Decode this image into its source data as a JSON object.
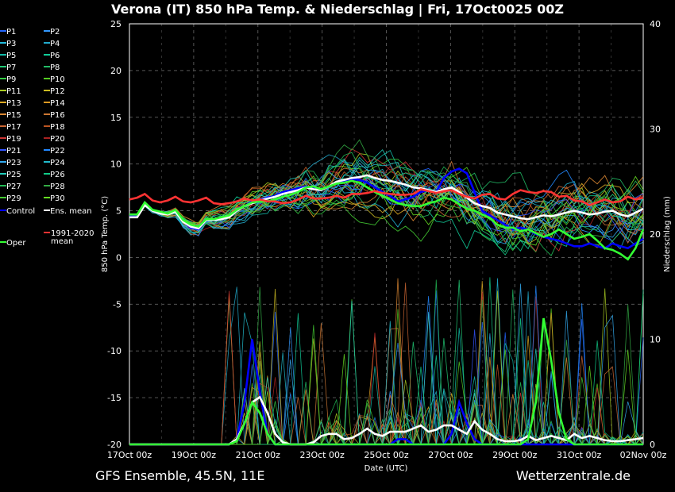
{
  "chart_data": {
    "type": "line",
    "title": "Verona  (IT)  850 hPa Temp. & Niederschlag | Fri, 17Oct0025 00Z",
    "xlabel": "Date (UTC)",
    "ylabel_left": "850 hPa Temp. (°C)",
    "ylabel_right": "Niederschlag (mm)",
    "ylim_left": [
      -20,
      25
    ],
    "ylim_right": [
      0,
      40
    ],
    "yticks_left": [
      "25",
      "20",
      "15",
      "10",
      "5",
      "0",
      "-5",
      "-10",
      "-15",
      "-20"
    ],
    "yticks_right": [
      "40",
      "30",
      "20",
      "10",
      "0"
    ],
    "xticks": [
      "17Oct 00z",
      "19Oct 00z",
      "21Oct 00z",
      "23Oct 00z",
      "25Oct 00z",
      "27Oct 00z",
      "29Oct 00z",
      "31Oct 00z",
      "02Nov 00z"
    ],
    "x_start": "2025-10-17T00:00Z",
    "x_end": "2025-11-02T00:00Z",
    "grid": true,
    "legend_position": "left",
    "footer_left": "GFS Ensemble, 45.5N, 11E",
    "footer_right": "Wetterzentrale.de",
    "perturbation_count": 30,
    "perturbation_colors": [
      "#2266ff",
      "#3399ff",
      "#22bbdd",
      "#22aacc",
      "#11bbaa",
      "#11cc99",
      "#22cc77",
      "#22bb66",
      "#33cc44",
      "#55cc22",
      "#aacc22",
      "#ccbb22",
      "#ddaa22",
      "#dd9922",
      "#dd8833",
      "#cc7733",
      "#cc6633",
      "#bb5522",
      "#cc3333",
      "#aa2222",
      "#3355ff",
      "#2288ff",
      "#33aaee",
      "#22bbcc",
      "#22ccbb",
      "#11cc88",
      "#22bb55",
      "#33aa44",
      "#44cc33",
      "#66dd22"
    ],
    "legend": [
      {
        "label": "P1",
        "color": "#2266ff"
      },
      {
        "label": "P2",
        "color": "#3399ff"
      },
      {
        "label": "P3",
        "color": "#22bbdd"
      },
      {
        "label": "P4",
        "color": "#22aacc"
      },
      {
        "label": "P5",
        "color": "#11bbaa"
      },
      {
        "label": "P6",
        "color": "#11cc99"
      },
      {
        "label": "P7",
        "color": "#22cc77"
      },
      {
        "label": "P8",
        "color": "#22bb66"
      },
      {
        "label": "P9",
        "color": "#33cc44"
      },
      {
        "label": "P10",
        "color": "#55cc22"
      },
      {
        "label": "P11",
        "color": "#aacc22"
      },
      {
        "label": "P12",
        "color": "#ccbb22"
      },
      {
        "label": "P13",
        "color": "#ddaa22"
      },
      {
        "label": "P14",
        "color": "#dd9922"
      },
      {
        "label": "P15",
        "color": "#dd8833"
      },
      {
        "label": "P16",
        "color": "#cc7733"
      },
      {
        "label": "P17",
        "color": "#cc6633"
      },
      {
        "label": "P18",
        "color": "#bb5522"
      },
      {
        "label": "P19",
        "color": "#cc3333"
      },
      {
        "label": "P20",
        "color": "#aa2222"
      },
      {
        "label": "P21",
        "color": "#3355ff"
      },
      {
        "label": "P22",
        "color": "#2288ff"
      },
      {
        "label": "P23",
        "color": "#33aaee"
      },
      {
        "label": "P24",
        "color": "#22bbcc"
      },
      {
        "label": "P25",
        "color": "#22ccbb"
      },
      {
        "label": "P26",
        "color": "#11cc88"
      },
      {
        "label": "P27",
        "color": "#22bb55"
      },
      {
        "label": "P28",
        "color": "#33aa44"
      },
      {
        "label": "P29",
        "color": "#44cc33"
      },
      {
        "label": "P30",
        "color": "#66dd22"
      },
      {
        "label": "Control",
        "color": "#0000ff"
      },
      {
        "label": "Ens. mean",
        "color": "#ffffff"
      },
      {
        "label": "Oper",
        "color": "#33ff33"
      },
      {
        "label": "1991-2020 mean",
        "color": "#ff3333"
      }
    ],
    "series": [
      {
        "name": "Control",
        "color": "#0000ff",
        "values": [
          4.5,
          4.5,
          5.8,
          5.0,
          4.8,
          4.6,
          5.0,
          3.8,
          3.2,
          3.0,
          4.0,
          4.0,
          4.2,
          4.3,
          5.0,
          5.5,
          6.0,
          6.2,
          6.4,
          6.6,
          7.0,
          7.2,
          7.4,
          7.6,
          7.4,
          7.2,
          7.6,
          8.0,
          8.2,
          8.4,
          8.3,
          8.0,
          7.5,
          7.0,
          6.6,
          6.0,
          6.2,
          6.5,
          7.0,
          7.2,
          7.0,
          8.5,
          9.2,
          9.5,
          9.0,
          7.0,
          5.0,
          4.5,
          4.0,
          3.5,
          3.0,
          3.2,
          3.0,
          2.5,
          2.2,
          2.0,
          1.8,
          1.5,
          1.2,
          1.2,
          1.5,
          1.2,
          1.0,
          1.5,
          1.2,
          1.0,
          1.5,
          2.0
        ]
      },
      {
        "name": "Ens. mean",
        "color": "#ffffff",
        "values": [
          4.3,
          4.3,
          5.6,
          5.0,
          4.7,
          4.6,
          4.9,
          3.8,
          3.3,
          3.1,
          4.0,
          4.0,
          4.1,
          4.3,
          5.0,
          5.5,
          5.8,
          6.1,
          6.3,
          6.5,
          6.8,
          7.0,
          7.2,
          7.5,
          7.3,
          7.2,
          7.6,
          8.1,
          8.3,
          8.5,
          8.6,
          8.8,
          8.5,
          8.3,
          8.2,
          8.0,
          7.8,
          7.5,
          7.4,
          7.2,
          7.0,
          7.3,
          7.5,
          7.0,
          6.4,
          5.8,
          5.5,
          5.3,
          4.8,
          4.6,
          4.4,
          4.2,
          4.1,
          4.3,
          4.5,
          4.4,
          4.6,
          4.8,
          5.0,
          4.8,
          4.6,
          4.7,
          4.9,
          5.0,
          4.6,
          4.4,
          4.8,
          5.2
        ]
      },
      {
        "name": "Oper",
        "color": "#33ff33",
        "values": [
          4.6,
          4.6,
          5.9,
          5.1,
          4.9,
          4.7,
          5.1,
          4.0,
          3.5,
          3.3,
          4.1,
          4.1,
          4.3,
          4.5,
          5.1,
          5.5,
          5.9,
          6.0,
          6.0,
          6.2,
          6.5,
          6.7,
          7.0,
          7.5,
          7.6,
          7.3,
          7.6,
          7.9,
          8.0,
          8.2,
          8.0,
          7.5,
          7.0,
          6.6,
          6.2,
          5.8,
          5.6,
          5.5,
          5.5,
          5.8,
          6.0,
          6.4,
          6.2,
          5.7,
          5.2,
          5.0,
          4.6,
          4.2,
          3.5,
          3.2,
          3.2,
          2.8,
          3.0,
          2.6,
          2.2,
          2.5,
          3.0,
          2.5,
          2.0,
          2.2,
          2.5,
          1.8,
          1.0,
          0.8,
          0.4,
          -0.2,
          1.0,
          3.0
        ]
      },
      {
        "name": "1991-2020 mean",
        "color": "#ff3333",
        "values": [
          6.2,
          6.4,
          6.8,
          6.1,
          5.9,
          6.1,
          6.5,
          6.0,
          5.9,
          6.1,
          6.4,
          5.8,
          5.7,
          5.8,
          6.0,
          6.3,
          6.1,
          6.2,
          6.0,
          6.0,
          5.8,
          5.9,
          6.2,
          6.6,
          6.3,
          6.3,
          6.4,
          6.6,
          6.4,
          6.8,
          6.8,
          6.9,
          7.1,
          6.9,
          6.8,
          6.7,
          6.7,
          6.8,
          7.3,
          7.1,
          6.9,
          7.1,
          7.2,
          6.8,
          6.5,
          6.3,
          6.7,
          6.8,
          6.3,
          6.2,
          6.8,
          7.2,
          7.0,
          6.9,
          7.1,
          7.0,
          6.5,
          6.6,
          6.1,
          6.0,
          5.6,
          5.9,
          6.2,
          5.9,
          6.0,
          6.5,
          6.2,
          6.4
        ]
      }
    ],
    "precip_series": [
      {
        "name": "Control",
        "color": "#0000ff",
        "values": [
          0,
          0,
          0,
          0,
          0,
          0,
          0,
          0,
          0,
          0,
          0,
          0,
          0,
          0,
          0.5,
          4,
          10,
          5,
          1,
          0,
          0,
          0,
          0,
          0,
          0,
          0,
          0,
          0,
          0,
          0,
          0,
          0,
          0,
          0,
          0,
          0.5,
          0.5,
          0,
          0,
          0,
          0,
          0,
          1,
          4,
          2,
          0.5,
          0,
          0,
          0,
          0,
          0,
          0,
          0,
          0,
          0,
          0,
          0,
          0,
          0,
          0,
          0,
          0,
          0,
          0,
          0,
          0,
          0,
          0
        ]
      },
      {
        "name": "Ens. mean",
        "color": "#ffffff",
        "values": [
          0,
          0,
          0,
          0,
          0,
          0,
          0,
          0,
          0,
          0,
          0,
          0,
          0,
          0,
          0.5,
          2,
          4,
          4.5,
          3,
          1,
          0.2,
          0,
          0,
          0,
          0.2,
          0.8,
          1.0,
          1.0,
          0.5,
          0.6,
          1.0,
          1.5,
          1.0,
          0.8,
          1.2,
          1.2,
          1.2,
          1.5,
          1.8,
          1.2,
          1.4,
          1.8,
          1.8,
          1.4,
          1.0,
          2.2,
          1.4,
          1.0,
          0.5,
          0.3,
          0.3,
          0.4,
          0.8,
          0.4,
          0.6,
          0.8,
          0.6,
          0.4,
          1.0,
          0.6,
          0.8,
          0.6,
          0.4,
          0.3,
          0.3,
          0.4,
          0.5,
          0.6
        ]
      },
      {
        "name": "Oper",
        "color": "#33ff33",
        "values": [
          0,
          0,
          0,
          0,
          0,
          0,
          0,
          0,
          0,
          0,
          0,
          0,
          0,
          0,
          0.3,
          2,
          4,
          3,
          1,
          0,
          0,
          0,
          0,
          0,
          0,
          0,
          0,
          0,
          0,
          0,
          0,
          0,
          0,
          0,
          0,
          0,
          0,
          0,
          0,
          0,
          0,
          0,
          0,
          0,
          0,
          0,
          0,
          0,
          0,
          0,
          0,
          0,
          0.5,
          4,
          12,
          8,
          3,
          0.5,
          0,
          0,
          0,
          0,
          0,
          0,
          0,
          0,
          0,
          0
        ]
      }
    ]
  }
}
